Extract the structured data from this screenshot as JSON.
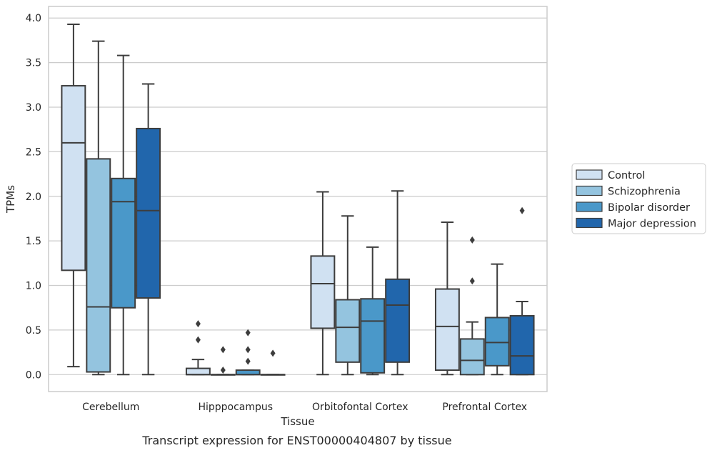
{
  "chart_data": {
    "type": "box",
    "caption": "Transcript expression for ENST00000404807 by tissue",
    "xlabel": "Tissue",
    "ylabel": "TPMs",
    "ylim": [
      -0.19,
      4.13
    ],
    "yticks": [
      0.0,
      0.5,
      1.0,
      1.5,
      2.0,
      2.5,
      3.0,
      3.5,
      4.0
    ],
    "ytick_labels": [
      "0.0",
      "0.5",
      "1.0",
      "1.5",
      "2.0",
      "2.5",
      "3.0",
      "3.5",
      "4.0"
    ],
    "grid": "horizontal",
    "legend_position": "right",
    "categories": [
      "Cerebellum",
      "Hipppocampus",
      "Orbitofontal Cortex",
      "Prefrontal Cortex"
    ],
    "series": [
      {
        "name": "Control",
        "color": "#d0e1f2",
        "boxes": [
          {
            "whisker_low": 0.09,
            "q1": 1.17,
            "median": 2.6,
            "q3": 3.24,
            "whisker_high": 3.93,
            "outliers": []
          },
          {
            "whisker_low": 0.0,
            "q1": 0.0,
            "median": 0.0,
            "q3": 0.07,
            "whisker_high": 0.17,
            "outliers": [
              0.39,
              0.57
            ]
          },
          {
            "whisker_low": 0.0,
            "q1": 0.52,
            "median": 1.02,
            "q3": 1.33,
            "whisker_high": 2.05,
            "outliers": []
          },
          {
            "whisker_low": 0.0,
            "q1": 0.05,
            "median": 0.54,
            "q3": 0.96,
            "whisker_high": 1.71,
            "outliers": []
          }
        ]
      },
      {
        "name": "Schizophrenia",
        "color": "#94c4df",
        "boxes": [
          {
            "whisker_low": 0.0,
            "q1": 0.03,
            "median": 0.76,
            "q3": 2.42,
            "whisker_high": 3.74,
            "outliers": []
          },
          {
            "whisker_low": 0.0,
            "q1": 0.0,
            "median": 0.0,
            "q3": 0.0,
            "whisker_high": 0.0,
            "outliers": [
              0.05,
              0.28
            ]
          },
          {
            "whisker_low": 0.0,
            "q1": 0.14,
            "median": 0.53,
            "q3": 0.84,
            "whisker_high": 1.78,
            "outliers": []
          },
          {
            "whisker_low": 0.0,
            "q1": 0.0,
            "median": 0.16,
            "q3": 0.4,
            "whisker_high": 0.59,
            "outliers": [
              1.05,
              1.51
            ]
          }
        ]
      },
      {
        "name": "Bipolar disorder",
        "color": "#4a98c9",
        "boxes": [
          {
            "whisker_low": 0.0,
            "q1": 0.75,
            "median": 1.94,
            "q3": 2.2,
            "whisker_high": 3.58,
            "outliers": []
          },
          {
            "whisker_low": 0.0,
            "q1": 0.0,
            "median": 0.0,
            "q3": 0.05,
            "whisker_high": 0.05,
            "outliers": [
              0.15,
              0.28,
              0.47
            ]
          },
          {
            "whisker_low": 0.0,
            "q1": 0.02,
            "median": 0.6,
            "q3": 0.85,
            "whisker_high": 1.43,
            "outliers": []
          },
          {
            "whisker_low": 0.0,
            "q1": 0.1,
            "median": 0.36,
            "q3": 0.64,
            "whisker_high": 1.24,
            "outliers": []
          }
        ]
      },
      {
        "name": "Major depression",
        "color": "#2166ac",
        "boxes": [
          {
            "whisker_low": 0.0,
            "q1": 0.86,
            "median": 1.84,
            "q3": 2.76,
            "whisker_high": 3.26,
            "outliers": []
          },
          {
            "whisker_low": 0.0,
            "q1": 0.0,
            "median": 0.0,
            "q3": 0.0,
            "whisker_high": 0.0,
            "outliers": [
              0.24
            ]
          },
          {
            "whisker_low": 0.0,
            "q1": 0.14,
            "median": 0.78,
            "q3": 1.07,
            "whisker_high": 2.06,
            "outliers": []
          },
          {
            "whisker_low": 0.0,
            "q1": 0.0,
            "median": 0.21,
            "q3": 0.66,
            "whisker_high": 0.82,
            "outliers": [
              1.84
            ]
          }
        ]
      }
    ]
  }
}
